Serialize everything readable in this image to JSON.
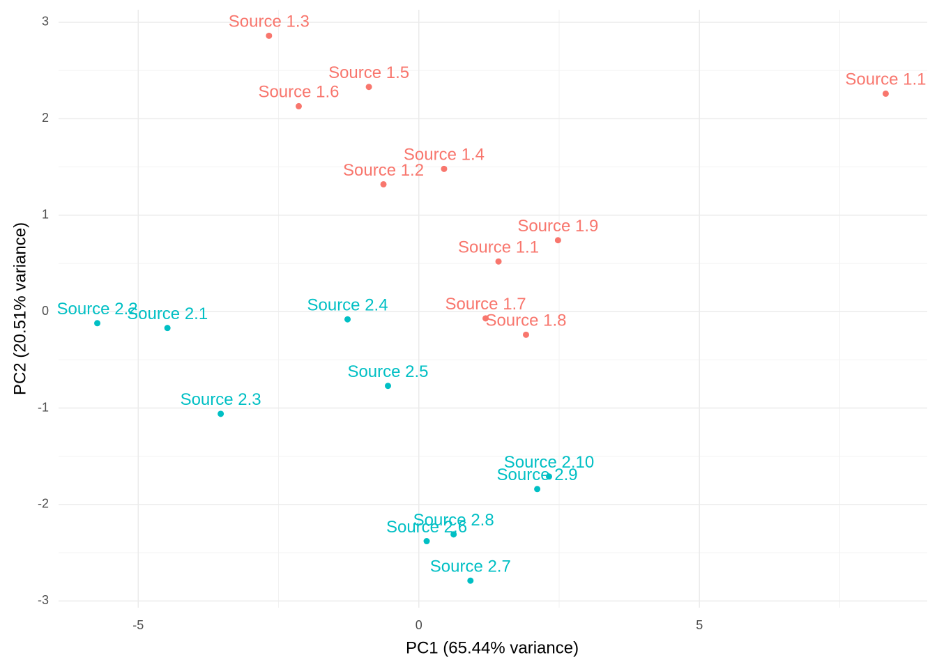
{
  "chart_data": {
    "type": "scatter",
    "x_label": "PC1 (65.44% variance)",
    "y_label": "PC2 (20.51% variance)",
    "xlim": [
      -6.42,
      9.06
    ],
    "ylim": [
      -3.07,
      3.13
    ],
    "xticks": [
      -5,
      0,
      5
    ],
    "yticks": [
      -3,
      -2,
      -1,
      0,
      1,
      2,
      3
    ],
    "xminor": [
      -2.5,
      2.5,
      7.5
    ],
    "yminor": [
      -2.5,
      -1.5,
      -0.5,
      0.5,
      1.5,
      2.5
    ],
    "grid": true,
    "series": [
      {
        "color": "#F8766D",
        "labels": [
          "Source 1.3",
          "Source 1.5",
          "Source 1.6",
          "Source 1.1",
          "Source 1.4",
          "Source 1.2",
          "Source 1.9",
          "Source 1.1",
          "Source 1.7",
          "Source 1.8"
        ],
        "x": [
          -2.67,
          -0.89,
          -2.14,
          8.32,
          0.45,
          -0.63,
          2.48,
          1.42,
          1.19,
          1.91
        ],
        "y": [
          2.86,
          2.33,
          2.13,
          2.26,
          1.48,
          1.32,
          0.74,
          0.52,
          -0.07,
          -0.24
        ]
      },
      {
        "color": "#00BFC4",
        "labels": [
          "Source 2.2",
          "Source 2.1",
          "Source 2.4",
          "Source 2.5",
          "Source 2.3",
          "Source 2.10",
          "Source 2.9",
          "Source 2.8",
          "Source 2.6",
          "Source 2.7"
        ],
        "x": [
          -5.73,
          -4.48,
          -1.27,
          -0.55,
          -3.53,
          2.32,
          2.11,
          0.62,
          0.14,
          0.92
        ],
        "y": [
          -0.12,
          -0.17,
          -0.08,
          -0.77,
          -1.06,
          -1.71,
          -1.84,
          -2.31,
          -2.38,
          -2.79
        ]
      }
    ]
  }
}
